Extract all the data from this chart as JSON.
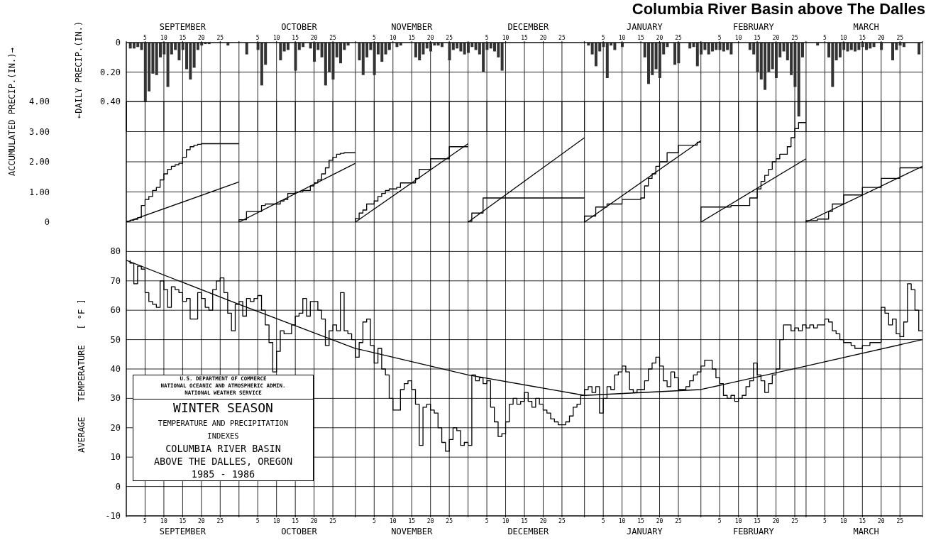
{
  "chart_data": [
    {
      "type": "bar",
      "title": "Columbia River Basin above The Dalles",
      "ylabel": "←DAILY PRECIP.(IN.)",
      "color": "#333333",
      "x": [
        "1985-09-01",
        "1985-09-02",
        "1985-09-03",
        "1985-09-04",
        "1985-09-05",
        "1985-09-06",
        "1985-09-07",
        "1985-09-08",
        "1985-09-09",
        "1985-09-10",
        "1985-09-11",
        "1985-09-12",
        "1985-09-13",
        "1985-09-14",
        "1985-09-15",
        "1985-09-16",
        "1985-09-17",
        "1985-09-18",
        "1985-09-19",
        "1985-09-20",
        "1985-09-21",
        "1985-09-22",
        "1985-09-27",
        "1985-10-02",
        "1985-10-05",
        "1985-10-06",
        "1985-10-07",
        "1985-10-11",
        "1985-10-12",
        "1985-10-13",
        "1985-10-15",
        "1985-10-16",
        "1985-10-17",
        "1985-10-19",
        "1985-10-20",
        "1985-10-21",
        "1985-10-22",
        "1985-10-23",
        "1985-10-24",
        "1985-10-25",
        "1985-10-26",
        "1985-10-27",
        "1985-10-28",
        "1985-10-29",
        "1985-11-01",
        "1985-11-02",
        "1985-11-03",
        "1985-11-04",
        "1985-11-05",
        "1985-11-06",
        "1985-11-07",
        "1985-11-08",
        "1985-11-09",
        "1985-11-11",
        "1985-11-12",
        "1985-11-16",
        "1985-11-17",
        "1985-11-18",
        "1985-11-19",
        "1985-11-20",
        "1985-11-21",
        "1985-11-22",
        "1985-11-23",
        "1985-11-25",
        "1985-11-26",
        "1985-11-27",
        "1985-11-28",
        "1985-11-29",
        "1985-11-30",
        "1985-12-01",
        "1985-12-02",
        "1985-12-03",
        "1985-12-04",
        "1985-12-05",
        "1985-12-06",
        "1985-12-07",
        "1985-12-08",
        "1985-12-09",
        "1986-01-01",
        "1986-01-02",
        "1986-01-03",
        "1986-01-04",
        "1986-01-05",
        "1986-01-06",
        "1986-01-07",
        "1986-01-08",
        "1986-01-10",
        "1986-01-16",
        "1986-01-17",
        "1986-01-18",
        "1986-01-19",
        "1986-01-20",
        "1986-01-21",
        "1986-01-22",
        "1986-01-24",
        "1986-01-25",
        "1986-01-28",
        "1986-01-29",
        "1986-01-30",
        "1986-01-31",
        "1986-02-01",
        "1986-02-02",
        "1986-02-03",
        "1986-02-04",
        "1986-02-05",
        "1986-02-06",
        "1986-02-07",
        "1986-02-08",
        "1986-02-13",
        "1986-02-14",
        "1986-02-15",
        "1986-02-16",
        "1986-02-17",
        "1986-02-18",
        "1986-02-19",
        "1986-02-20",
        "1986-02-21",
        "1986-02-22",
        "1986-02-23",
        "1986-02-24",
        "1986-02-25",
        "1986-02-26",
        "1986-02-27",
        "1986-03-03",
        "1986-03-06",
        "1986-03-07",
        "1986-03-08",
        "1986-03-09",
        "1986-03-10",
        "1986-03-11",
        "1986-03-12",
        "1986-03-13",
        "1986-03-14",
        "1986-03-15",
        "1986-03-16",
        "1986-03-17",
        "1986-03-18",
        "1986-03-20",
        "1986-03-23",
        "1986-03-24",
        "1986-03-25",
        "1986-03-26",
        "1986-03-30"
      ],
      "values": [
        0.04,
        0.04,
        0.03,
        0.05,
        0.4,
        0.33,
        0.21,
        0.22,
        0.1,
        0.08,
        0.3,
        0.08,
        0.05,
        0.12,
        0.05,
        0.18,
        0.25,
        0.17,
        0.05,
        0.02,
        0.01,
        0.01,
        0.02,
        0.08,
        0.05,
        0.29,
        0.15,
        0.12,
        0.06,
        0.05,
        0.19,
        0.05,
        0.03,
        0.04,
        0.13,
        0.05,
        0.1,
        0.29,
        0.2,
        0.25,
        0.1,
        0.14,
        0.05,
        0.02,
        0.12,
        0.22,
        0.1,
        0.05,
        0.22,
        0.08,
        0.13,
        0.08,
        0.05,
        0.03,
        0.02,
        0.1,
        0.12,
        0.08,
        0.04,
        0.06,
        0.02,
        0.02,
        0.03,
        0.12,
        0.05,
        0.04,
        0.06,
        0.08,
        0.07,
        0.03,
        0.05,
        0.08,
        0.2,
        0.05,
        0.04,
        0.06,
        0.1,
        0.19,
        0.02,
        0.08,
        0.16,
        0.06,
        0.03,
        0.24,
        0.02,
        0.05,
        0.03,
        0.1,
        0.28,
        0.22,
        0.18,
        0.24,
        0.08,
        0.03,
        0.15,
        0.14,
        0.04,
        0.03,
        0.16,
        0.08,
        0.05,
        0.08,
        0.06,
        0.05,
        0.05,
        0.06,
        0.05,
        0.08,
        0.05,
        0.08,
        0.2,
        0.25,
        0.32,
        0.2,
        0.18,
        0.24,
        0.1,
        0.06,
        0.12,
        0.22,
        0.3,
        0.5,
        0.1,
        0.02,
        0.1,
        0.3,
        0.12,
        0.1,
        0.05,
        0.06,
        0.05,
        0.06,
        0.05,
        0.03,
        0.05,
        0.04,
        0.03,
        0.05,
        0.12,
        0.05,
        0.02,
        0.03,
        0.08
      ],
      "xlim": [
        "1985-08-31",
        "1986-03-31"
      ],
      "xticks": [
        {
          "value": "1985-08-31",
          "label": null
        },
        {
          "value": "1985-09-05",
          "label": "5"
        },
        {
          "value": "1985-09-10",
          "label": "10"
        },
        {
          "value": "1985-09-15",
          "label": "15"
        },
        {
          "value": "1985-09-20",
          "label": "20"
        },
        {
          "value": "1985-09-25",
          "label": "25"
        },
        {
          "value": "1985-09-30",
          "label": null
        },
        {
          "value": "1985-10-05",
          "label": "5"
        },
        {
          "value": "1985-10-10",
          "label": "10"
        },
        {
          "value": "1985-10-15",
          "label": "15"
        },
        {
          "value": "1985-10-20",
          "label": "20"
        },
        {
          "value": "1985-10-25",
          "label": "25"
        },
        {
          "value": "1985-10-31",
          "label": null
        },
        {
          "value": "1985-11-05",
          "label": "5"
        },
        {
          "value": "1985-11-10",
          "label": "10"
        },
        {
          "value": "1985-11-15",
          "label": "15"
        },
        {
          "value": "1985-11-20",
          "label": "20"
        },
        {
          "value": "1985-11-25",
          "label": "25"
        },
        {
          "value": "1985-11-30",
          "label": null
        },
        {
          "value": "1985-12-05",
          "label": "5"
        },
        {
          "value": "1985-12-10",
          "label": "10"
        },
        {
          "value": "1985-12-15",
          "label": "15"
        },
        {
          "value": "1985-12-20",
          "label": "20"
        },
        {
          "value": "1985-12-25",
          "label": "25"
        },
        {
          "value": "1985-12-31",
          "label": null
        },
        {
          "value": "1986-01-05",
          "label": "5"
        },
        {
          "value": "1986-01-10",
          "label": "10"
        },
        {
          "value": "1986-01-15",
          "label": "15"
        },
        {
          "value": "1986-01-20",
          "label": "20"
        },
        {
          "value": "1986-01-25",
          "label": "25"
        },
        {
          "value": "1986-01-31",
          "label": null
        },
        {
          "value": "1986-02-05",
          "label": "5"
        },
        {
          "value": "1986-02-10",
          "label": "10"
        },
        {
          "value": "1986-02-15",
          "label": "15"
        },
        {
          "value": "1986-02-20",
          "label": "20"
        },
        {
          "value": "1986-02-25",
          "label": "25"
        },
        {
          "value": "1986-02-28",
          "label": null
        },
        {
          "value": "1986-03-05",
          "label": "5"
        },
        {
          "value": "1986-03-10",
          "label": "10"
        },
        {
          "value": "1986-03-15",
          "label": "15"
        },
        {
          "value": "1986-03-20",
          "label": "20"
        },
        {
          "value": "1986-03-25",
          "label": "25"
        },
        {
          "value": "1986-03-31",
          "label": null
        }
      ],
      "x2lim": [
        "1985-08-31",
        "1986-03-31"
      ],
      "x2ticks": [
        {
          "value": "1985-09-15",
          "label": "SEPTEMBER"
        },
        {
          "value": "1985-10-16",
          "label": "OCTOBER"
        },
        {
          "value": "1985-11-15",
          "label": "NOVEMBER"
        },
        {
          "value": "1985-12-16",
          "label": "DECEMBER"
        },
        {
          "value": "1986-01-16",
          "label": "JANUARY"
        },
        {
          "value": "1986-02-14",
          "label": "FEBRUARY"
        },
        {
          "value": "1986-03-16",
          "label": "MARCH"
        }
      ],
      "ylim": [
        0.6,
        0
      ],
      "yticks": [
        0,
        {
          "value": 0.2,
          "label": "0.20"
        },
        {
          "value": 0.4,
          "label": "0.40"
        }
      ],
      "grid": true
    },
    {
      "type": "line",
      "ylabel": "ACCUMULATED PRECIP.(IN.)→",
      "series": [
        {
          "type": "step",
          "color": "#000000",
          "x": [
            "1985-08-31",
            "1985-09-01",
            "1985-09-02",
            "1985-09-03",
            "1985-09-04",
            "1985-09-05",
            "1985-09-06",
            "1985-09-07",
            "1985-09-08",
            "1985-09-09",
            "1985-09-10",
            "1985-09-11",
            "1985-09-12",
            "1985-09-13",
            "1985-09-14",
            "1985-09-15",
            "1985-09-16",
            "1985-09-17",
            "1985-09-18",
            "1985-09-19",
            "1985-09-20",
            "1985-09-22",
            "1985-09-30"
          ],
          "values": [
            0,
            0.03,
            0.06,
            0.09,
            0.15,
            0.55,
            0.75,
            0.85,
            1.05,
            1.15,
            1.4,
            1.6,
            1.75,
            1.85,
            1.9,
            1.95,
            2.15,
            2.4,
            2.5,
            2.55,
            2.58,
            2.6,
            2.6
          ]
        },
        {
          "type": "step",
          "color": "#000000",
          "x": [
            "1985-09-30",
            "1985-10-02",
            "1985-10-06",
            "1985-10-07",
            "1985-10-11",
            "1985-10-12",
            "1985-10-13",
            "1985-10-15",
            "1985-10-17",
            "1985-10-19",
            "1985-10-20",
            "1985-10-21",
            "1985-10-22",
            "1985-10-23",
            "1985-10-24",
            "1985-10-25",
            "1985-10-26",
            "1985-10-27",
            "1985-10-28",
            "1985-10-31"
          ],
          "values": [
            0,
            0.08,
            0.35,
            0.55,
            0.6,
            0.7,
            0.75,
            0.95,
            1.0,
            1.05,
            1.2,
            1.3,
            1.4,
            1.6,
            1.8,
            2.05,
            2.15,
            2.25,
            2.28,
            2.3
          ]
        },
        {
          "type": "step",
          "color": "#000000",
          "x": [
            "1985-10-31",
            "1985-11-01",
            "1985-11-02",
            "1985-11-03",
            "1985-11-05",
            "1985-11-06",
            "1985-11-07",
            "1985-11-08",
            "1985-11-09",
            "1985-11-11",
            "1985-11-12",
            "1985-11-16",
            "1985-11-17",
            "1985-11-20",
            "1985-11-25",
            "1985-11-30"
          ],
          "values": [
            0,
            0.12,
            0.3,
            0.4,
            0.6,
            0.7,
            0.85,
            0.95,
            1.05,
            1.1,
            1.15,
            1.3,
            1.45,
            1.75,
            2.1,
            2.5
          ]
        },
        {
          "type": "step",
          "color": "#000000",
          "x": [
            "1985-11-30",
            "1985-12-01",
            "1985-12-04",
            "1985-12-09",
            "1985-12-31"
          ],
          "values": [
            0,
            0.03,
            0.3,
            0.8,
            0.8
          ]
        },
        {
          "type": "step",
          "color": "#000000",
          "x": [
            "1985-12-31",
            "1986-01-03",
            "1986-01-06",
            "1986-01-10",
            "1986-01-15",
            "1986-01-16",
            "1986-01-17",
            "1986-01-18",
            "1986-01-19",
            "1986-01-20",
            "1986-01-22",
            "1986-01-25",
            "1986-01-30",
            "1986-01-31"
          ],
          "values": [
            0,
            0.2,
            0.5,
            0.6,
            0.75,
            0.8,
            1.2,
            1.45,
            1.6,
            1.85,
            2.0,
            2.3,
            2.55,
            2.65
          ]
        },
        {
          "type": "step",
          "color": "#000000",
          "x": [
            "1986-01-31",
            "1986-02-08",
            "1986-02-13",
            "1986-02-15",
            "1986-02-16",
            "1986-02-17",
            "1986-02-18",
            "1986-02-19",
            "1986-02-20",
            "1986-02-21",
            "1986-02-23",
            "1986-02-24",
            "1986-02-25",
            "1986-02-26",
            "1986-02-27",
            "1986-02-28"
          ],
          "values": [
            0,
            0.5,
            0.55,
            0.8,
            1.1,
            1.35,
            1.55,
            1.75,
            2.0,
            2.1,
            2.25,
            2.5,
            2.8,
            3.1,
            3.3,
            3.3
          ]
        },
        {
          "type": "step",
          "color": "#000000",
          "x": [
            "1986-02-28",
            "1986-03-03",
            "1986-03-06",
            "1986-03-07",
            "1986-03-10",
            "1986-03-15",
            "1986-03-20",
            "1986-03-25",
            "1986-03-31"
          ],
          "values": [
            0,
            0.05,
            0.1,
            0.35,
            0.6,
            0.9,
            1.15,
            1.45,
            1.8
          ]
        },
        {
          "color": "#000000",
          "x": [
            "1985-08-31",
            "1985-09-30"
          ],
          "values": [
            0,
            1.33
          ]
        },
        {
          "color": "#000000",
          "x": [
            "1985-09-30",
            "1985-10-31"
          ],
          "values": [
            0,
            1.95
          ]
        },
        {
          "color": "#000000",
          "x": [
            "1985-10-31",
            "1985-11-30"
          ],
          "values": [
            0,
            2.6
          ]
        },
        {
          "color": "#000000",
          "x": [
            "1985-11-30",
            "1985-12-31"
          ],
          "values": [
            0,
            2.8
          ]
        },
        {
          "color": "#000000",
          "x": [
            "1985-12-31",
            "1986-01-31"
          ],
          "values": [
            0,
            2.7
          ]
        },
        {
          "color": "#000000",
          "x": [
            "1986-01-31",
            "1986-02-28"
          ],
          "values": [
            0,
            2.1
          ]
        },
        {
          "color": "#000000",
          "x": [
            "1986-02-28",
            "1986-03-31"
          ],
          "values": [
            0,
            1.85
          ]
        }
      ],
      "xlim": [
        "1985-08-31",
        "1986-03-31"
      ],
      "xticks": [
        "1985-08-31",
        "1985-09-05",
        "1985-09-10",
        "1985-09-15",
        "1985-09-20",
        "1985-09-25",
        "1985-09-30",
        "1985-10-05",
        "1985-10-10",
        "1985-10-15",
        "1985-10-20",
        "1985-10-25",
        "1985-10-31",
        "1985-11-05",
        "1985-11-10",
        "1985-11-15",
        "1985-11-20",
        "1985-11-25",
        "1985-11-30",
        "1985-12-05",
        "1985-12-10",
        "1985-12-15",
        "1985-12-20",
        "1985-12-25",
        "1985-12-31",
        "1986-01-05",
        "1986-01-10",
        "1986-01-15",
        "1986-01-20",
        "1986-01-25",
        "1986-01-31",
        "1986-02-05",
        "1986-02-10",
        "1986-02-15",
        "1986-02-20",
        "1986-02-25",
        "1986-02-28",
        "1986-03-05",
        "1986-03-10",
        "1986-03-15",
        "1986-03-20",
        "1986-03-25",
        "1986-03-31"
      ],
      "ylim": [
        0,
        4
      ],
      "yticks": [
        0,
        {
          "value": 1,
          "label": "1.00"
        },
        {
          "value": 2,
          "label": "2.00"
        },
        {
          "value": 3,
          "label": "3.00"
        },
        {
          "value": 4,
          "label": "4.00"
        }
      ],
      "grid": true,
      "tick_labels": "y"
    },
    {
      "type": "line",
      "ylabel": "AVERAGE   TEMPERATURE   [ °F ]",
      "x": [
        "1985-09-01",
        "1985-09-02",
        "1985-09-03",
        "1985-09-04",
        "1985-09-05",
        "1985-09-06",
        "1985-09-07",
        "1985-09-08",
        "1985-09-09",
        "1985-09-10",
        "1985-09-11",
        "1985-09-12",
        "1985-09-13",
        "1985-09-14",
        "1985-09-15",
        "1985-09-16",
        "1985-09-17",
        "1985-09-18",
        "1985-09-19",
        "1985-09-20",
        "1985-09-21",
        "1985-09-22",
        "1985-09-23",
        "1985-09-24",
        "1985-09-25",
        "1985-09-26",
        "1985-09-27",
        "1985-09-28",
        "1985-09-29",
        "1985-09-30",
        "1985-10-01",
        "1985-10-02",
        "1985-10-03",
        "1985-10-04",
        "1985-10-05",
        "1985-10-06",
        "1985-10-07",
        "1985-10-08",
        "1985-10-09",
        "1985-10-10",
        "1985-10-11",
        "1985-10-12",
        "1985-10-13",
        "1985-10-14",
        "1985-10-15",
        "1985-10-16",
        "1985-10-17",
        "1985-10-18",
        "1985-10-19",
        "1985-10-20",
        "1985-10-21",
        "1985-10-22",
        "1985-10-23",
        "1985-10-24",
        "1985-10-25",
        "1985-10-26",
        "1985-10-27",
        "1985-10-28",
        "1985-10-29",
        "1985-10-30",
        "1985-10-31",
        "1985-11-01",
        "1985-11-02",
        "1985-11-03",
        "1985-11-04",
        "1985-11-05",
        "1985-11-06",
        "1985-11-07",
        "1985-11-08",
        "1985-11-09",
        "1985-11-10",
        "1985-11-11",
        "1985-11-12",
        "1985-11-13",
        "1985-11-14",
        "1985-11-15",
        "1985-11-16",
        "1985-11-17",
        "1985-11-18",
        "1985-11-19",
        "1985-11-20",
        "1985-11-21",
        "1985-11-22",
        "1985-11-23",
        "1985-11-24",
        "1985-11-25",
        "1985-11-26",
        "1985-11-27",
        "1985-11-28",
        "1985-11-29",
        "1985-11-30",
        "1985-12-01",
        "1985-12-02",
        "1985-12-03",
        "1985-12-04",
        "1985-12-05",
        "1985-12-06",
        "1985-12-07",
        "1985-12-08",
        "1985-12-09",
        "1985-12-10",
        "1985-12-11",
        "1985-12-12",
        "1985-12-13",
        "1985-12-14",
        "1985-12-15",
        "1985-12-16",
        "1985-12-17",
        "1985-12-18",
        "1985-12-19",
        "1985-12-20",
        "1985-12-21",
        "1985-12-22",
        "1985-12-23",
        "1985-12-24",
        "1985-12-25",
        "1985-12-26",
        "1985-12-27",
        "1985-12-28",
        "1985-12-29",
        "1985-12-30",
        "1985-12-31",
        "1986-01-01",
        "1986-01-02",
        "1986-01-03",
        "1986-01-04",
        "1986-01-05",
        "1986-01-06",
        "1986-01-07",
        "1986-01-08",
        "1986-01-09",
        "1986-01-10",
        "1986-01-11",
        "1986-01-12",
        "1986-01-13",
        "1986-01-14",
        "1986-01-15",
        "1986-01-16",
        "1986-01-17",
        "1986-01-18",
        "1986-01-19",
        "1986-01-20",
        "1986-01-21",
        "1986-01-22",
        "1986-01-23",
        "1986-01-24",
        "1986-01-25",
        "1986-01-26",
        "1986-01-27",
        "1986-01-28",
        "1986-01-29",
        "1986-01-30",
        "1986-01-31",
        "1986-02-01",
        "1986-02-02",
        "1986-02-03",
        "1986-02-04",
        "1986-02-05",
        "1986-02-06",
        "1986-02-07",
        "1986-02-08",
        "1986-02-09",
        "1986-02-10",
        "1986-02-11",
        "1986-02-12",
        "1986-02-13",
        "1986-02-14",
        "1986-02-15",
        "1986-02-16",
        "1986-02-17",
        "1986-02-18",
        "1986-02-19",
        "1986-02-20",
        "1986-02-21",
        "1986-02-22",
        "1986-02-23",
        "1986-02-24",
        "1986-02-25",
        "1986-02-26",
        "1986-02-27",
        "1986-02-28",
        "1986-03-01",
        "1986-03-02",
        "1986-03-03",
        "1986-03-04",
        "1986-03-05",
        "1986-03-06",
        "1986-03-07",
        "1986-03-08",
        "1986-03-09",
        "1986-03-10",
        "1986-03-11",
        "1986-03-12",
        "1986-03-13",
        "1986-03-14",
        "1986-03-15",
        "1986-03-16",
        "1986-03-17",
        "1986-03-18",
        "1986-03-19",
        "1986-03-20",
        "1986-03-21",
        "1986-03-22",
        "1986-03-23",
        "1986-03-24",
        "1986-03-25",
        "1986-03-26",
        "1986-03-27",
        "1986-03-28",
        "1986-03-29",
        "1986-03-30",
        "1986-03-31"
      ],
      "series": [
        {
          "type": "step",
          "color": "#000000",
          "values": [
            77,
            76,
            69,
            75,
            74,
            66,
            63,
            62,
            61,
            70,
            67,
            61,
            68,
            67,
            66,
            63,
            64,
            57,
            57,
            66,
            64,
            61,
            60,
            67,
            70,
            71,
            66,
            59,
            53,
            62,
            63,
            58,
            64,
            63,
            64,
            65,
            60,
            55,
            49,
            39,
            46,
            53,
            52,
            52,
            55,
            58,
            59,
            64,
            58,
            63,
            63,
            60,
            57,
            48,
            53,
            55,
            53,
            66,
            53,
            52,
            50,
            44,
            49,
            56,
            57,
            48,
            42,
            47,
            40,
            38,
            30,
            26,
            26,
            33,
            35,
            36,
            33,
            28,
            14,
            27,
            28,
            26,
            25,
            20,
            15,
            12,
            16,
            20,
            19,
            14,
            15,
            14,
            38,
            36,
            37,
            35,
            36,
            27,
            22,
            17,
            18,
            22,
            28,
            30,
            28,
            29,
            32,
            29,
            27,
            30,
            28,
            26,
            25,
            23,
            22,
            21,
            21,
            22,
            24,
            27,
            28,
            31,
            33,
            34,
            32,
            34,
            25,
            30,
            34,
            33,
            38,
            39,
            41,
            39,
            33,
            32,
            33,
            33,
            36,
            40,
            42,
            44,
            41,
            36,
            34,
            39,
            37,
            33,
            33,
            34,
            36,
            38,
            39,
            41,
            43,
            43,
            40,
            37,
            35,
            31,
            30,
            31,
            29,
            30,
            31,
            34,
            36,
            42,
            38,
            36,
            32,
            35,
            38,
            40,
            50,
            55,
            55,
            53,
            54,
            53,
            55,
            54,
            55,
            54,
            55,
            55,
            57,
            56,
            53,
            52,
            50,
            49,
            49,
            48,
            47,
            47,
            48,
            48,
            49,
            49,
            49,
            61,
            59,
            55,
            57,
            52,
            51,
            56,
            69,
            67,
            60,
            53
          ]
        },
        {
          "color": "#000000",
          "x": [
            "1985-08-31",
            "1985-09-30",
            "1985-10-31",
            "1985-11-30",
            "1985-12-31",
            "1986-01-31",
            "1986-02-28",
            "1986-03-31"
          ],
          "values": [
            77,
            62,
            47,
            38,
            31,
            33,
            41,
            50
          ]
        }
      ],
      "xlim": [
        "1985-08-31",
        "1986-03-31"
      ],
      "xticks": [
        {
          "value": "1985-08-31",
          "label": null
        },
        {
          "value": "1985-09-05",
          "label": "5"
        },
        {
          "value": "1985-09-10",
          "label": "10"
        },
        {
          "value": "1985-09-15",
          "label": "15"
        },
        {
          "value": "1985-09-20",
          "label": "20"
        },
        {
          "value": "1985-09-25",
          "label": "25"
        },
        {
          "value": "1985-09-30",
          "label": null
        },
        {
          "value": "1985-10-05",
          "label": "5"
        },
        {
          "value": "1985-10-10",
          "label": "10"
        },
        {
          "value": "1985-10-15",
          "label": "15"
        },
        {
          "value": "1985-10-20",
          "label": "20"
        },
        {
          "value": "1985-10-25",
          "label": "25"
        },
        {
          "value": "1985-10-31",
          "label": null
        },
        {
          "value": "1985-11-05",
          "label": "5"
        },
        {
          "value": "1985-11-10",
          "label": "10"
        },
        {
          "value": "1985-11-15",
          "label": "15"
        },
        {
          "value": "1985-11-20",
          "label": "20"
        },
        {
          "value": "1985-11-25",
          "label": "25"
        },
        {
          "value": "1985-11-30",
          "label": null
        },
        {
          "value": "1985-12-05",
          "label": "5"
        },
        {
          "value": "1985-12-10",
          "label": "10"
        },
        {
          "value": "1985-12-15",
          "label": "15"
        },
        {
          "value": "1985-12-20",
          "label": "20"
        },
        {
          "value": "1985-12-25",
          "label": "25"
        },
        {
          "value": "1985-12-31",
          "label": null
        },
        {
          "value": "1986-01-05",
          "label": "5"
        },
        {
          "value": "1986-01-10",
          "label": "10"
        },
        {
          "value": "1986-01-15",
          "label": "15"
        },
        {
          "value": "1986-01-20",
          "label": "20"
        },
        {
          "value": "1986-01-25",
          "label": "25"
        },
        {
          "value": "1986-01-31",
          "label": null
        },
        {
          "value": "1986-02-05",
          "label": "5"
        },
        {
          "value": "1986-02-10",
          "label": "10"
        },
        {
          "value": "1986-02-15",
          "label": "15"
        },
        {
          "value": "1986-02-20",
          "label": "20"
        },
        {
          "value": "1986-02-25",
          "label": "25"
        },
        {
          "value": "1986-02-28",
          "label": null
        },
        {
          "value": "1986-03-05",
          "label": "5"
        },
        {
          "value": "1986-03-10",
          "label": "10"
        },
        {
          "value": "1986-03-15",
          "label": "15"
        },
        {
          "value": "1986-03-20",
          "label": "20"
        },
        {
          "value": "1986-03-25",
          "label": "25"
        },
        {
          "value": "1986-03-31",
          "label": null
        }
      ],
      "x2lim": [
        "1985-08-31",
        "1986-03-31"
      ],
      "x2ticks": [
        {
          "value": "1985-09-15",
          "label": "SEPTEMBER"
        },
        {
          "value": "1985-10-16",
          "label": "OCTOBER"
        },
        {
          "value": "1985-11-15",
          "label": "NOVEMBER"
        },
        {
          "value": "1985-12-16",
          "label": "DECEMBER"
        },
        {
          "value": "1986-01-16",
          "label": "JANUARY"
        },
        {
          "value": "1986-02-14",
          "label": "FEBRUARY"
        },
        {
          "value": "1986-03-16",
          "label": "MARCH"
        }
      ],
      "ylim": [
        -10,
        90
      ],
      "yticks": [
        -10,
        0,
        10,
        20,
        30,
        40,
        50,
        60,
        70,
        80
      ],
      "grid": true,
      "annotations": [
        "U.S. DEPARTMENT OF COMMERCE",
        "NATIONAL OCEANIC AND ATMOSPHERIC ADMIN.",
        "NATIONAL WEATHER SERVICE",
        "WINTER SEASON",
        "TEMPERATURE AND PRECIPITATION",
        "INDEXES",
        "COLUMBIA RIVER BASIN",
        "ABOVE THE DALLES, OREGON",
        "1985 - 1986"
      ]
    }
  ]
}
